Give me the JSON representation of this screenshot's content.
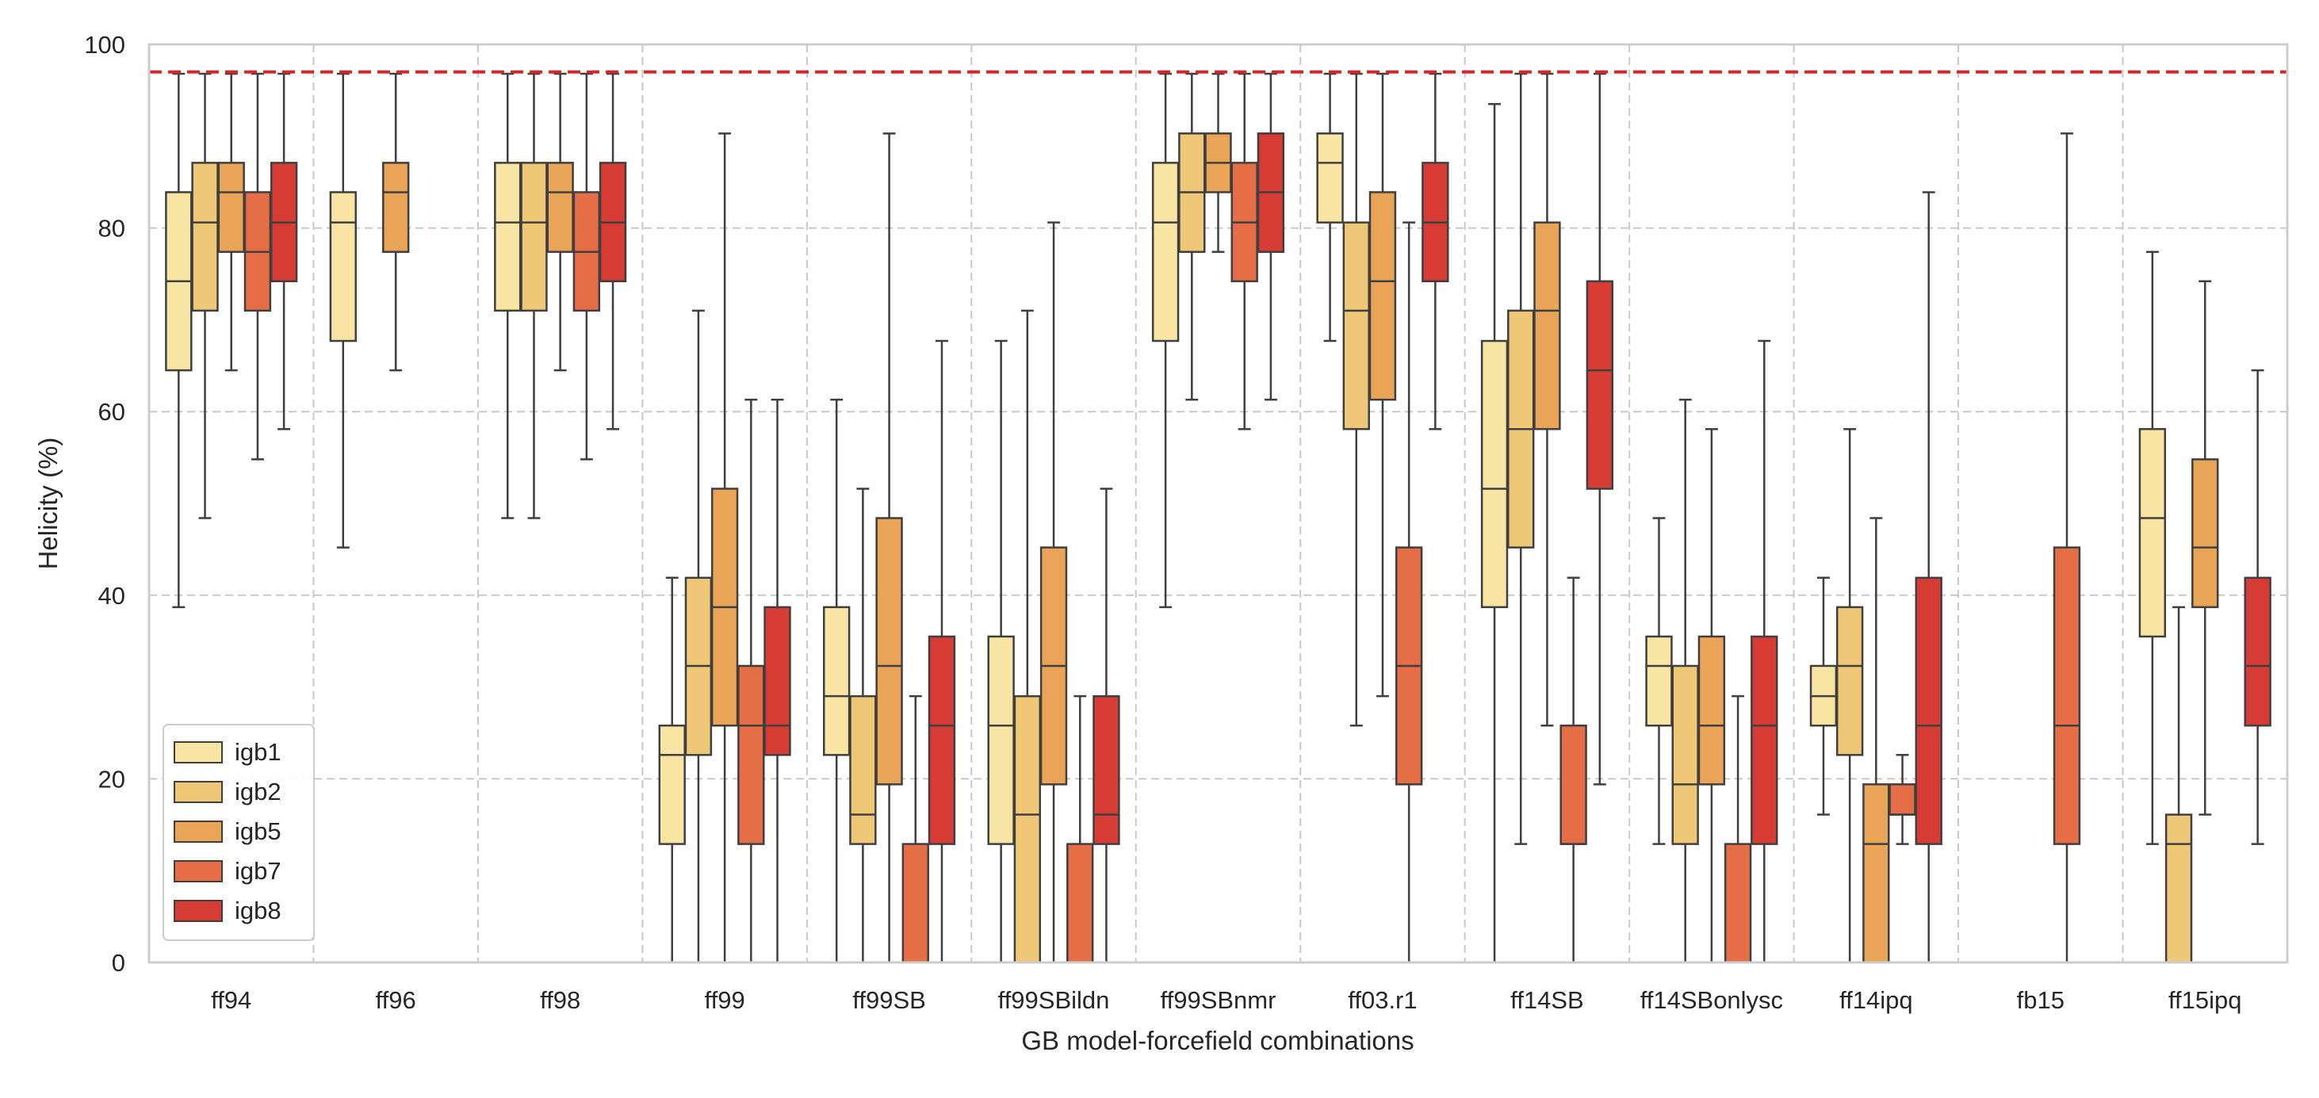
{
  "chart_data": {
    "type": "boxplot",
    "xlabel": "GB model-forcefield combinations",
    "ylabel": "Helicity (%)",
    "ylim": [
      0,
      100
    ],
    "yticks": [
      0,
      20,
      40,
      60,
      80,
      100
    ],
    "grid": true,
    "reference_line": {
      "y": 97,
      "style": "dashed",
      "color": "#d62728"
    },
    "legend": {
      "placement": "lower-left",
      "entries": [
        "igb1",
        "igb2",
        "igb5",
        "igb7",
        "igb8"
      ]
    },
    "series": [
      {
        "name": "igb1",
        "color": "#f8e5a3"
      },
      {
        "name": "igb2",
        "color": "#eec877"
      },
      {
        "name": "igb5",
        "color": "#e9a458"
      },
      {
        "name": "igb7",
        "color": "#e56e46"
      },
      {
        "name": "igb8",
        "color": "#d63b34"
      }
    ],
    "categories": [
      "ff94",
      "ff96",
      "ff98",
      "ff99",
      "ff99SB",
      "ff99SBildn",
      "ff99SBnmr",
      "ff03.r1",
      "ff14SB",
      "ff14SBonlysc",
      "ff14ipq",
      "fb15",
      "ff15ipq"
    ],
    "boxes": [
      {
        "category": "ff94",
        "series": "igb1",
        "whislo": 38.7,
        "q1": 64.5,
        "med": 74.2,
        "q3": 83.9,
        "whishi": 96.8
      },
      {
        "category": "ff94",
        "series": "igb2",
        "whislo": 48.4,
        "q1": 71.0,
        "med": 80.6,
        "q3": 87.1,
        "whishi": 96.8
      },
      {
        "category": "ff94",
        "series": "igb5",
        "whislo": 64.5,
        "q1": 77.4,
        "med": 83.9,
        "q3": 87.1,
        "whishi": 96.8
      },
      {
        "category": "ff94",
        "series": "igb7",
        "whislo": 54.8,
        "q1": 71.0,
        "med": 77.4,
        "q3": 83.9,
        "whishi": 96.8
      },
      {
        "category": "ff94",
        "series": "igb8",
        "whislo": 58.1,
        "q1": 74.2,
        "med": 80.6,
        "q3": 87.1,
        "whishi": 96.8
      },
      {
        "category": "ff96",
        "series": "igb1",
        "whislo": 45.2,
        "q1": 67.7,
        "med": 80.6,
        "q3": 83.9,
        "whishi": 96.8
      },
      {
        "category": "ff96",
        "series": "igb5",
        "whislo": 64.5,
        "q1": 77.4,
        "med": 83.9,
        "q3": 87.1,
        "whishi": 96.8
      },
      {
        "category": "ff98",
        "series": "igb1",
        "whislo": 48.4,
        "q1": 71.0,
        "med": 80.6,
        "q3": 87.1,
        "whishi": 96.8
      },
      {
        "category": "ff98",
        "series": "igb2",
        "whislo": 48.4,
        "q1": 71.0,
        "med": 80.6,
        "q3": 87.1,
        "whishi": 96.8
      },
      {
        "category": "ff98",
        "series": "igb5",
        "whislo": 64.5,
        "q1": 77.4,
        "med": 83.9,
        "q3": 87.1,
        "whishi": 96.8
      },
      {
        "category": "ff98",
        "series": "igb7",
        "whislo": 54.8,
        "q1": 71.0,
        "med": 77.4,
        "q3": 83.9,
        "whishi": 96.8
      },
      {
        "category": "ff98",
        "series": "igb8",
        "whislo": 58.1,
        "q1": 74.2,
        "med": 80.6,
        "q3": 87.1,
        "whishi": 96.8
      },
      {
        "category": "ff99",
        "series": "igb1",
        "whislo": 0,
        "q1": 12.9,
        "med": 22.6,
        "q3": 25.8,
        "whishi": 41.9
      },
      {
        "category": "ff99",
        "series": "igb2",
        "whislo": 0,
        "q1": 22.6,
        "med": 32.3,
        "q3": 41.9,
        "whishi": 71.0
      },
      {
        "category": "ff99",
        "series": "igb5",
        "whislo": 0,
        "q1": 25.8,
        "med": 38.7,
        "q3": 51.6,
        "whishi": 90.3
      },
      {
        "category": "ff99",
        "series": "igb7",
        "whislo": 0,
        "q1": 12.9,
        "med": 25.8,
        "q3": 32.3,
        "whishi": 61.3
      },
      {
        "category": "ff99",
        "series": "igb8",
        "whislo": 0,
        "q1": 22.6,
        "med": 25.8,
        "q3": 38.7,
        "whishi": 61.3
      },
      {
        "category": "ff99SB",
        "series": "igb1",
        "whislo": 0,
        "q1": 22.6,
        "med": 29.0,
        "q3": 38.7,
        "whishi": 61.3
      },
      {
        "category": "ff99SB",
        "series": "igb2",
        "whislo": 0,
        "q1": 12.9,
        "med": 16.1,
        "q3": 29.0,
        "whishi": 51.6
      },
      {
        "category": "ff99SB",
        "series": "igb5",
        "whislo": 0,
        "q1": 19.4,
        "med": 32.3,
        "q3": 48.4,
        "whishi": 90.3
      },
      {
        "category": "ff99SB",
        "series": "igb7",
        "whislo": 0,
        "q1": 0,
        "med": 0,
        "q3": 12.9,
        "whishi": 29.0
      },
      {
        "category": "ff99SB",
        "series": "igb8",
        "whislo": 0,
        "q1": 12.9,
        "med": 25.8,
        "q3": 35.5,
        "whishi": 67.7
      },
      {
        "category": "ff99SBildn",
        "series": "igb1",
        "whislo": 0,
        "q1": 12.9,
        "med": 25.8,
        "q3": 35.5,
        "whishi": 67.7
      },
      {
        "category": "ff99SBildn",
        "series": "igb2",
        "whislo": 0,
        "q1": 0,
        "med": 16.1,
        "q3": 29.0,
        "whishi": 71.0
      },
      {
        "category": "ff99SBildn",
        "series": "igb5",
        "whislo": 0,
        "q1": 19.4,
        "med": 32.3,
        "q3": 45.2,
        "whishi": 80.6
      },
      {
        "category": "ff99SBildn",
        "series": "igb7",
        "whislo": 0,
        "q1": 0,
        "med": 0,
        "q3": 12.9,
        "whishi": 29.0
      },
      {
        "category": "ff99SBildn",
        "series": "igb8",
        "whislo": 0,
        "q1": 12.9,
        "med": 16.1,
        "q3": 29.0,
        "whishi": 51.6
      },
      {
        "category": "ff99SBnmr",
        "series": "igb1",
        "whislo": 38.7,
        "q1": 67.7,
        "med": 80.6,
        "q3": 87.1,
        "whishi": 96.8
      },
      {
        "category": "ff99SBnmr",
        "series": "igb2",
        "whislo": 61.3,
        "q1": 77.4,
        "med": 83.9,
        "q3": 90.3,
        "whishi": 96.8
      },
      {
        "category": "ff99SBnmr",
        "series": "igb5",
        "whislo": 77.4,
        "q1": 83.9,
        "med": 87.1,
        "q3": 90.3,
        "whishi": 96.8
      },
      {
        "category": "ff99SBnmr",
        "series": "igb7",
        "whislo": 58.1,
        "q1": 74.2,
        "med": 80.6,
        "q3": 87.1,
        "whishi": 96.8
      },
      {
        "category": "ff99SBnmr",
        "series": "igb8",
        "whislo": 61.3,
        "q1": 77.4,
        "med": 83.9,
        "q3": 90.3,
        "whishi": 96.8
      },
      {
        "category": "ff03.r1",
        "series": "igb1",
        "whislo": 67.7,
        "q1": 80.6,
        "med": 87.1,
        "q3": 90.3,
        "whishi": 96.8
      },
      {
        "category": "ff03.r1",
        "series": "igb2",
        "whislo": 25.8,
        "q1": 58.1,
        "med": 71.0,
        "q3": 80.6,
        "whishi": 96.8
      },
      {
        "category": "ff03.r1",
        "series": "igb5",
        "whislo": 29.0,
        "q1": 61.3,
        "med": 74.2,
        "q3": 83.9,
        "whishi": 96.8
      },
      {
        "category": "ff03.r1",
        "series": "igb7",
        "whislo": 0,
        "q1": 19.4,
        "med": 32.3,
        "q3": 45.2,
        "whishi": 80.6
      },
      {
        "category": "ff03.r1",
        "series": "igb8",
        "whislo": 58.1,
        "q1": 74.2,
        "med": 80.6,
        "q3": 87.1,
        "whishi": 96.8
      },
      {
        "category": "ff14SB",
        "series": "igb1",
        "whislo": 0,
        "q1": 38.7,
        "med": 51.6,
        "q3": 67.7,
        "whishi": 93.5
      },
      {
        "category": "ff14SB",
        "series": "igb2",
        "whislo": 12.9,
        "q1": 45.2,
        "med": 58.1,
        "q3": 71.0,
        "whishi": 96.8
      },
      {
        "category": "ff14SB",
        "series": "igb5",
        "whislo": 25.8,
        "q1": 58.1,
        "med": 71.0,
        "q3": 80.6,
        "whishi": 96.8
      },
      {
        "category": "ff14SB",
        "series": "igb7",
        "whislo": 0,
        "q1": 12.9,
        "med": 12.9,
        "q3": 25.8,
        "whishi": 41.9
      },
      {
        "category": "ff14SB",
        "series": "igb8",
        "whislo": 19.4,
        "q1": 51.6,
        "med": 64.5,
        "q3": 74.2,
        "whishi": 96.8
      },
      {
        "category": "ff14SBonlysc",
        "series": "igb1",
        "whislo": 12.9,
        "q1": 25.8,
        "med": 32.3,
        "q3": 35.5,
        "whishi": 48.4
      },
      {
        "category": "ff14SBonlysc",
        "series": "igb2",
        "whislo": 0,
        "q1": 12.9,
        "med": 19.4,
        "q3": 32.3,
        "whishi": 61.3
      },
      {
        "category": "ff14SBonlysc",
        "series": "igb5",
        "whislo": 0,
        "q1": 19.4,
        "med": 25.8,
        "q3": 35.5,
        "whishi": 58.1
      },
      {
        "category": "ff14SBonlysc",
        "series": "igb7",
        "whislo": 0,
        "q1": 0,
        "med": 0,
        "q3": 12.9,
        "whishi": 29.0
      },
      {
        "category": "ff14SBonlysc",
        "series": "igb8",
        "whislo": 0,
        "q1": 12.9,
        "med": 25.8,
        "q3": 35.5,
        "whishi": 67.7
      },
      {
        "category": "ff14ipq",
        "series": "igb1",
        "whislo": 16.1,
        "q1": 25.8,
        "med": 29.0,
        "q3": 32.3,
        "whishi": 41.9
      },
      {
        "category": "ff14ipq",
        "series": "igb2",
        "whislo": 0,
        "q1": 22.6,
        "med": 32.3,
        "q3": 38.7,
        "whishi": 58.1
      },
      {
        "category": "ff14ipq",
        "series": "igb5",
        "whislo": 0,
        "q1": 0,
        "med": 12.9,
        "q3": 19.4,
        "whishi": 48.4
      },
      {
        "category": "ff14ipq",
        "series": "igb7",
        "whislo": 12.9,
        "q1": 16.1,
        "med": 16.1,
        "q3": 19.4,
        "whishi": 22.6
      },
      {
        "category": "ff14ipq",
        "series": "igb8",
        "whislo": 0,
        "q1": 12.9,
        "med": 25.8,
        "q3": 41.9,
        "whishi": 83.9
      },
      {
        "category": "fb15",
        "series": "igb7",
        "whislo": 0,
        "q1": 12.9,
        "med": 25.8,
        "q3": 45.2,
        "whishi": 90.3
      },
      {
        "category": "ff15ipq",
        "series": "igb1",
        "whislo": 12.9,
        "q1": 35.5,
        "med": 48.4,
        "q3": 58.1,
        "whishi": 77.4
      },
      {
        "category": "ff15ipq",
        "series": "igb2",
        "whislo": 0,
        "q1": 0,
        "med": 12.9,
        "q3": 16.1,
        "whishi": 38.7
      },
      {
        "category": "ff15ipq",
        "series": "igb5",
        "whislo": 16.1,
        "q1": 38.7,
        "med": 45.2,
        "q3": 54.8,
        "whishi": 74.2
      },
      {
        "category": "ff15ipq",
        "series": "igb8",
        "whislo": 12.9,
        "q1": 25.8,
        "med": 32.3,
        "q3": 41.9,
        "whishi": 64.5
      }
    ]
  }
}
